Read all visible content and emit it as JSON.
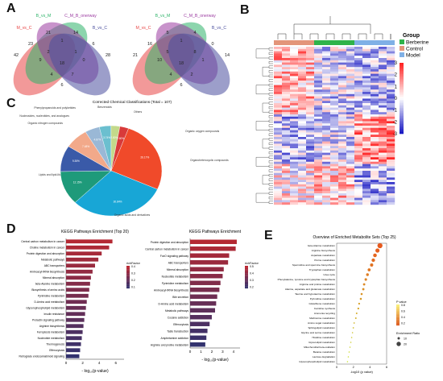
{
  "panel_labels": [
    "A",
    "B",
    "C",
    "D",
    "E"
  ],
  "chart_data": [
    {
      "type": "venn",
      "panel": "A-left",
      "sets": [
        {
          "name": "M_vs_C",
          "color": "#e84545"
        },
        {
          "name": "B_vs_M",
          "color": "#2eb36a"
        },
        {
          "name": "C_M_B_onerway",
          "color": "#9b3aa0"
        },
        {
          "name": "B_vs_C",
          "color": "#4a4f9e"
        }
      ],
      "region_labels": [
        "42",
        "21",
        "14",
        "28",
        "23",
        "1",
        "6",
        "9",
        "0",
        "4",
        "7",
        "2",
        "1",
        "6",
        "18"
      ]
    },
    {
      "type": "venn",
      "panel": "A-right",
      "sets": [
        {
          "name": "M_vs_C",
          "color": "#e84545"
        },
        {
          "name": "B_vs_M",
          "color": "#2eb36a"
        },
        {
          "name": "C_M_B_onerway",
          "color": "#9b3aa0"
        },
        {
          "name": "B_vs_C",
          "color": "#4a4f9e"
        }
      ],
      "region_labels": [
        "21",
        "5",
        "4",
        "14",
        "16",
        "1",
        "0",
        "10",
        "1",
        "4",
        "2",
        "5",
        "8",
        "6",
        "18"
      ]
    },
    {
      "type": "heatmap",
      "panel": "B",
      "groups": [
        {
          "name": "Berberine",
          "color": "#2fb34a"
        },
        {
          "name": "Control",
          "color": "#e3957a"
        },
        {
          "name": "Model",
          "color": "#7fb0e6"
        }
      ],
      "legend_title": "Group",
      "colorbar_ticks": [
        3,
        2,
        1,
        0,
        -1,
        -2,
        -3
      ],
      "zlim": [
        -3,
        3
      ]
    },
    {
      "type": "pie",
      "panel": "C",
      "title": "Corrected Chemical Classifications (Total = 107)",
      "slices": [
        {
          "label": "Lipids and lipid-like molecules",
          "value": 26.17,
          "pct": "26.17%",
          "color": "#f04a2a"
        },
        {
          "label": "Organic acids and derivatives",
          "value": 30.84,
          "pct": "30.84%",
          "color": "#18a6d6"
        },
        {
          "label": "Organoheterocyclic compounds",
          "value": 12.15,
          "pct": "12.15%",
          "color": "#1e9a7a"
        },
        {
          "label": "Organic oxygen compounds",
          "value": 9.35,
          "pct": "9.35%",
          "color": "#3a5aa8"
        },
        {
          "label": "Others",
          "value": 7.48,
          "pct": "7.48%",
          "color": "#f2a98a"
        },
        {
          "label": "Benzenoids",
          "value": 4.67,
          "pct": "4.67%",
          "color": "#9ab8d6"
        },
        {
          "label": "Phenylpropanoids and polyketides",
          "value": 3.74,
          "pct": "3.74%",
          "color": "#6bbfcf"
        },
        {
          "label": "Nucleosides, nucleotides, and analogues",
          "value": 2.8,
          "pct": "2.80%",
          "color": "#c3d98a"
        },
        {
          "label": "Organic nitrogen compounds",
          "value": 2.8,
          "pct": "2.80%",
          "color": "#d83a3a"
        }
      ]
    },
    {
      "type": "bar",
      "panel": "D-left",
      "orientation": "horizontal",
      "title": "KEGG Pathways Enrichment (Top 20)",
      "xlabel": "- log₁₀(p-value)",
      "xlim": [
        0,
        7
      ],
      "xticks": [
        0,
        2,
        4,
        6
      ],
      "legend_title": "richFactor",
      "legend_ticks": [
        "0.4",
        "0.3",
        "0.2",
        "0.1"
      ],
      "categories": [
        "Central carbon metabolism in cancer",
        "Choline metabolism in cancer",
        "Protein digestion and absorption",
        "Metabolic pathways",
        "ABC transporters",
        "Aminoacyl-tRNA biosynthesis",
        "Mineral absorption",
        "beta-Alanine metabolism",
        "Biosynthesis of amino acids",
        "Pyrimidine metabolism",
        "D-Amino acid metabolism",
        "Glycerophospholipid metabolism",
        "Insulin resistance",
        "Prolactin signaling pathway",
        "Arginine biosynthesis",
        "Ferroptosis metabolism",
        "Nucleotide metabolism",
        "Thermogenesis",
        "Efferocytosis",
        "Retrograde endocannabinoid signaling"
      ],
      "values": [
        5.6,
        5.2,
        4.3,
        3.9,
        3.5,
        3.2,
        3.0,
        2.9,
        2.8,
        2.7,
        2.5,
        2.4,
        2.3,
        2.2,
        2.1,
        2.0,
        1.9,
        1.8,
        1.7,
        1.6
      ]
    },
    {
      "type": "bar",
      "panel": "D-right",
      "orientation": "horizontal",
      "title": "KEGG Pathways Enrichment",
      "xlabel": "- log₁₀(p-value)",
      "xlim": [
        0,
        4.6
      ],
      "xticks": [
        0,
        1,
        2,
        3,
        4
      ],
      "legend_title": "richFactor",
      "legend_ticks": [
        "0.5",
        "0.4",
        "0.3",
        "0.2"
      ],
      "categories": [
        "Protein digestion and absorption",
        "Central carbon metabolism in cancer",
        "FoxO signaling pathway",
        "ABC transporters",
        "Mineral absorption",
        "Nucleotide metabolism",
        "Pyrimidine metabolism",
        "Aminoacyl-tRNA biosynthesis",
        "Bile secretion",
        "D-Amino acid metabolism",
        "Metabolic pathways",
        "Cocaine addiction",
        "Efferocytosis",
        "Taste transduction",
        "Amphetamine addiction",
        "Arginine and proline metabolism"
      ],
      "values": [
        4.3,
        4.2,
        3.6,
        3.5,
        3.1,
        3.0,
        2.8,
        2.7,
        2.5,
        2.4,
        2.3,
        2.0,
        1.8,
        1.6,
        1.5,
        1.4
      ]
    },
    {
      "type": "scatter",
      "panel": "E",
      "title": "Overview of Enriched Metabolite Sets (Top 25)",
      "xlabel": "-log10 (p value)",
      "xlim": [
        0,
        6
      ],
      "xticks": [
        "0",
        "2",
        "4",
        "6"
      ],
      "legend_pvalue_title": "P value",
      "legend_pvalue_ticks": [
        "0.8",
        "0.6",
        "0.4",
        "0.2"
      ],
      "legend_ratio_title": "Enrichment Ratio",
      "legend_ratio_ticks": [
        "10",
        "20"
      ],
      "categories": [
        "beta-Alanine metabolism",
        "Arginine biosynthesis",
        "Aspartate metabolism",
        "Purine metabolism",
        "Spermidine and spermine biosynthesis",
        "Tryptophan metabolism",
        "Urea cycle",
        "Phenylalanine, tyrosine and tryptophan biosynthesis",
        "Arginine and proline metabolism",
        "Alanine, aspartate and glutamate metabolism",
        "Taurine and hypotaurine metabolism",
        "Pyrimidine metabolism",
        "Glutathione metabolism",
        "Carnitine synthesis",
        "Ammonia recycling",
        "Methionine metabolism",
        "Amino sugar metabolism",
        "Sphingolipid metabolism",
        "Glycine and serine metabolism",
        "Histidine metabolism",
        "Glycerolipid metabolism",
        "Mitochondrial beta-oxidation",
        "Betaine metabolism",
        "Lactose degradation",
        "Glycerophospholipid metabolism"
      ],
      "x": [
        5.2,
        4.9,
        4.6,
        4.4,
        4.2,
        3.9,
        3.7,
        3.5,
        3.3,
        3.2,
        3.0,
        2.9,
        2.7,
        2.6,
        2.4,
        2.3,
        2.1,
        2.0,
        1.9,
        1.8,
        1.7,
        1.6,
        1.5,
        1.4,
        1.3
      ],
      "sizes": [
        22,
        18,
        16,
        15,
        14,
        13,
        12,
        11,
        10,
        10,
        9,
        9,
        8,
        8,
        7,
        7,
        6,
        6,
        5,
        5,
        5,
        4,
        4,
        4,
        4
      ]
    }
  ]
}
